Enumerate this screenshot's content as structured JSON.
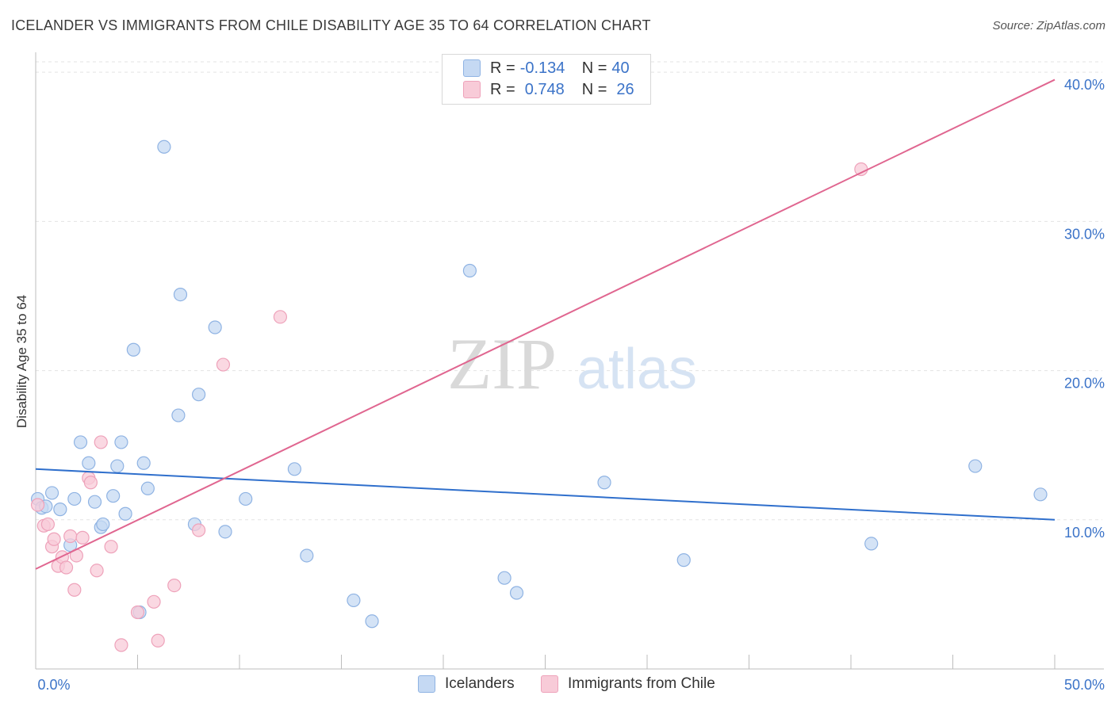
{
  "title": "ICELANDER VS IMMIGRANTS FROM CHILE DISABILITY AGE 35 TO 64 CORRELATION CHART",
  "source": "Source: ZipAtlas.com",
  "watermark": {
    "zip": "ZIP",
    "atlas": "atlas"
  },
  "legend_top": {
    "rows": [
      {
        "r_label": "R = ",
        "r_value": "-0.134",
        "n_label": "N = ",
        "n_value": "40"
      },
      {
        "r_label": "R = ",
        "r_value": "0.748",
        "n_label": "N = ",
        "n_value": "26"
      }
    ]
  },
  "legend_bottom": [
    "Icelanders",
    "Immigrants from Chile"
  ],
  "colors": {
    "blue_fill": "#c5d9f3",
    "blue_stroke": "#8fb3e3",
    "blue_line": "#2f6fcc",
    "pink_fill": "#f8cbd8",
    "pink_stroke": "#eea2ba",
    "pink_line": "#e06690",
    "tick_label": "#3b73c8"
  },
  "chart_data": {
    "type": "scatter",
    "title": "ICELANDER VS IMMIGRANTS FROM CHILE DISABILITY AGE 35 TO 64 CORRELATION CHART",
    "xlabel": "",
    "ylabel": "Disability Age 35 to 64",
    "xlim": [
      0,
      50
    ],
    "ylim": [
      0,
      40.7
    ],
    "x_tick_labels": [
      "0.0%",
      "50.0%"
    ],
    "y_ticks": [
      10,
      20,
      30,
      40
    ],
    "y_tick_labels": [
      "10.0%",
      "20.0%",
      "30.0%",
      "40.0%"
    ],
    "grid": true,
    "legend_position": "top-center",
    "series": [
      {
        "name": "Icelanders",
        "R": -0.134,
        "N": 40,
        "trend": {
          "x": [
            0,
            50
          ],
          "y": [
            13.4,
            10.0
          ]
        },
        "points": [
          [
            0.1,
            11.4
          ],
          [
            0.3,
            10.8
          ],
          [
            0.5,
            10.9
          ],
          [
            0.8,
            11.8
          ],
          [
            1.2,
            10.7
          ],
          [
            1.7,
            8.3
          ],
          [
            1.9,
            11.4
          ],
          [
            2.2,
            15.2
          ],
          [
            2.6,
            13.8
          ],
          [
            2.9,
            11.2
          ],
          [
            3.2,
            9.5
          ],
          [
            3.3,
            9.7
          ],
          [
            3.8,
            11.6
          ],
          [
            4.0,
            13.6
          ],
          [
            4.2,
            15.2
          ],
          [
            4.4,
            10.4
          ],
          [
            4.8,
            21.4
          ],
          [
            5.1,
            3.8
          ],
          [
            5.3,
            13.8
          ],
          [
            5.5,
            12.1
          ],
          [
            6.3,
            35.0
          ],
          [
            7.0,
            17.0
          ],
          [
            7.1,
            25.1
          ],
          [
            7.8,
            9.7
          ],
          [
            8.0,
            18.4
          ],
          [
            8.8,
            22.9
          ],
          [
            9.3,
            9.2
          ],
          [
            10.3,
            11.4
          ],
          [
            12.7,
            13.4
          ],
          [
            13.3,
            7.6
          ],
          [
            15.6,
            4.6
          ],
          [
            16.5,
            3.2
          ],
          [
            21.3,
            26.7
          ],
          [
            23.0,
            6.1
          ],
          [
            23.6,
            5.1
          ],
          [
            27.9,
            12.5
          ],
          [
            31.8,
            7.3
          ],
          [
            41.0,
            8.4
          ],
          [
            46.1,
            13.6
          ],
          [
            49.3,
            11.7
          ]
        ]
      },
      {
        "name": "Immigrants from Chile",
        "R": 0.748,
        "N": 26,
        "trend": {
          "x": [
            0,
            50
          ],
          "y": [
            6.7,
            39.5
          ]
        },
        "points": [
          [
            0.1,
            11.0
          ],
          [
            0.4,
            9.6
          ],
          [
            0.6,
            9.7
          ],
          [
            0.8,
            8.2
          ],
          [
            0.9,
            8.7
          ],
          [
            1.1,
            6.9
          ],
          [
            1.3,
            7.5
          ],
          [
            1.5,
            6.8
          ],
          [
            1.7,
            8.9
          ],
          [
            1.9,
            5.3
          ],
          [
            2.0,
            7.6
          ],
          [
            2.3,
            8.8
          ],
          [
            2.6,
            12.8
          ],
          [
            2.7,
            12.5
          ],
          [
            3.0,
            6.6
          ],
          [
            3.2,
            15.2
          ],
          [
            3.7,
            8.2
          ],
          [
            4.2,
            1.6
          ],
          [
            5.0,
            3.8
          ],
          [
            5.8,
            4.5
          ],
          [
            6.0,
            1.9
          ],
          [
            6.8,
            5.6
          ],
          [
            8.0,
            9.3
          ],
          [
            9.2,
            20.4
          ],
          [
            12.0,
            23.6
          ],
          [
            40.5,
            33.5
          ]
        ]
      }
    ]
  }
}
